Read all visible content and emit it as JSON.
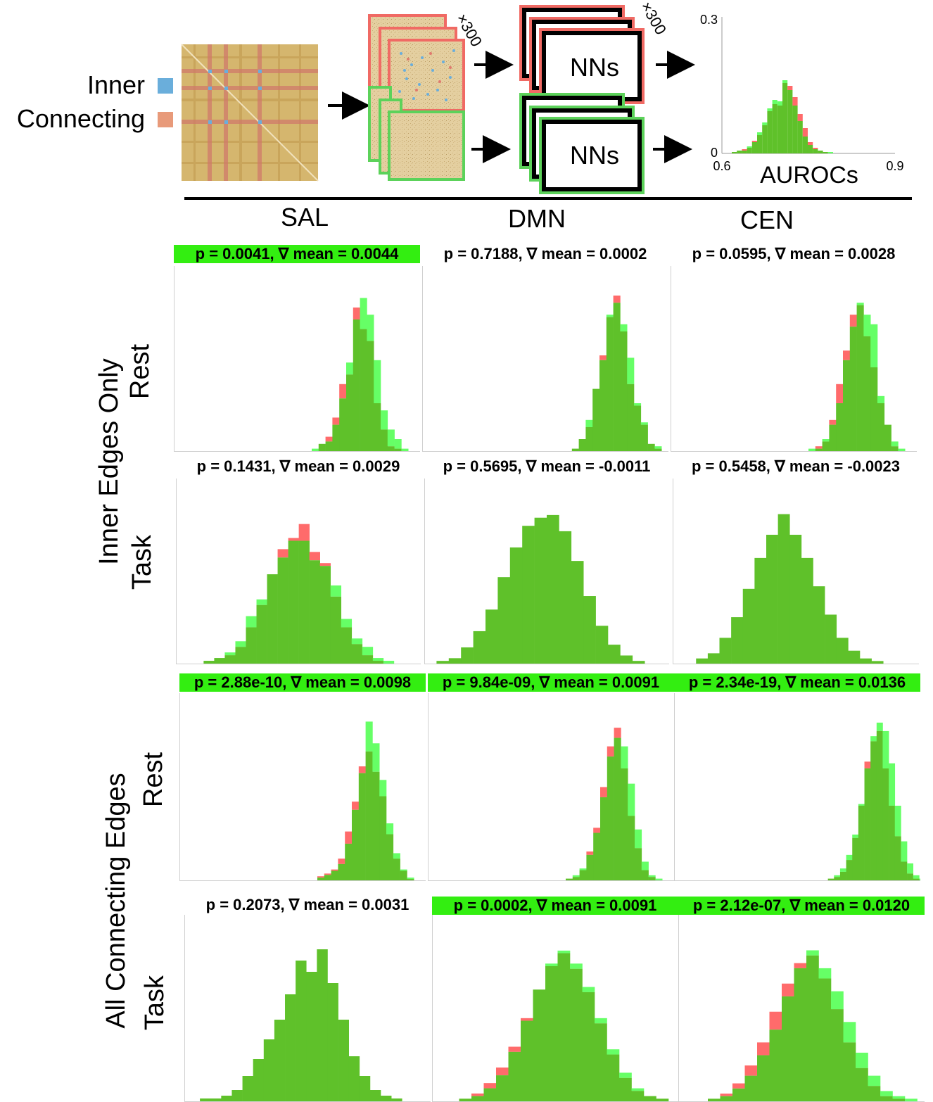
{
  "legend": {
    "inner_label": "Inner",
    "connecting_label": "Connecting",
    "inner_color": "#6aaedb",
    "connecting_color": "#e89a7a"
  },
  "diagram": {
    "repeat_label_1": "×300",
    "repeat_label_2": "×300",
    "nn_label_top": "NNs",
    "nn_label_bottom": "NNs",
    "hist_ymax": "0.3",
    "hist_ymin": "0",
    "hist_xmin": "0.6",
    "hist_xmax": "0.9",
    "hist_xlabel": "AUROCs"
  },
  "networks": [
    "SAL",
    "DMN",
    "CEN"
  ],
  "row_groups": [
    {
      "label": "Inner Edges Only"
    },
    {
      "label": "All Connecting Edges"
    }
  ],
  "row_labels": [
    "Rest",
    "Task",
    "Rest",
    "Task"
  ],
  "colors": {
    "red": "#ff6b6b",
    "green": "#66ff66",
    "overlap": "#5fc12a",
    "highlight": "#33ee11"
  },
  "chart_data": [
    {
      "type": "bar",
      "title": "p = 0.0041, ∇ mean = 0.0044",
      "significant": true,
      "series": [
        {
          "values": [
            1,
            3,
            4,
            11,
            22,
            37,
            55,
            64,
            57,
            38,
            17,
            9,
            5,
            1,
            0
          ]
        },
        {
          "values": [
            0,
            3,
            6,
            14,
            28,
            32,
            60,
            51,
            46,
            20,
            9,
            2,
            1,
            0,
            0
          ]
        }
      ]
    },
    {
      "type": "bar",
      "title": "p = 0.7188, ∇ mean = 0.0002",
      "significant": false,
      "series": [
        {
          "values": [
            0,
            1,
            5,
            13,
            26,
            38,
            57,
            62,
            53,
            39,
            20,
            12,
            3,
            2,
            0
          ]
        },
        {
          "values": [
            0,
            1,
            5,
            10,
            26,
            40,
            56,
            65,
            50,
            28,
            19,
            11,
            3,
            1,
            0
          ]
        }
      ]
    },
    {
      "type": "bar",
      "title": "p = 0.0595, ∇ mean = 0.0028",
      "significant": false,
      "series": [
        {
          "values": [
            1,
            1,
            5,
            11,
            20,
            38,
            52,
            62,
            57,
            53,
            23,
            11,
            4,
            1,
            0
          ]
        },
        {
          "values": [
            0,
            2,
            4,
            13,
            28,
            42,
            57,
            61,
            48,
            35,
            20,
            11,
            2,
            0,
            0
          ]
        }
      ]
    },
    {
      "type": "bar",
      "title": "p = 0.1431, ∇ mean = 0.0029",
      "significant": false,
      "series": [
        {
          "values": [
            0,
            1,
            2,
            4,
            8,
            17,
            23,
            32,
            38,
            44,
            44,
            37,
            35,
            28,
            16,
            9,
            6,
            2,
            1,
            0,
            0,
            0
          ]
        },
        {
          "values": [
            0,
            1,
            2,
            3,
            6,
            13,
            21,
            32,
            41,
            45,
            50,
            40,
            36,
            24,
            13,
            7,
            3,
            1,
            0,
            0,
            0,
            0
          ]
        }
      ]
    },
    {
      "type": "bar",
      "title": "p = 0.5695, ∇ mean = -0.0011",
      "significant": false,
      "series": [
        {
          "values": [
            0,
            1,
            2,
            6,
            12,
            20,
            32,
            43,
            51,
            54,
            55,
            49,
            38,
            25,
            14,
            7,
            3,
            1,
            0
          ]
        },
        {
          "values": [
            0,
            1,
            2,
            6,
            12,
            20,
            32,
            43,
            51,
            54,
            55,
            49,
            38,
            25,
            14,
            7,
            3,
            1,
            0
          ]
        }
      ]
    },
    {
      "type": "bar",
      "title": "p = 0.5458, ∇ mean = -0.0023",
      "significant": false,
      "series": [
        {
          "values": [
            0,
            0,
            2,
            4,
            10,
            18,
            29,
            41,
            50,
            58,
            50,
            41,
            30,
            19,
            10,
            5,
            2,
            1,
            0,
            0
          ]
        },
        {
          "values": [
            0,
            0,
            2,
            4,
            10,
            18,
            29,
            41,
            50,
            58,
            50,
            41,
            30,
            19,
            10,
            5,
            2,
            1,
            0,
            0
          ]
        }
      ]
    },
    {
      "type": "bar",
      "title": "p = 2.88e-10, ∇ mean = 0.0098",
      "significant": true,
      "series": [
        {
          "values": [
            2,
            4,
            7,
            12,
            27,
            52,
            79,
            117,
            101,
            74,
            42,
            20,
            8,
            2,
            0
          ]
        },
        {
          "values": [
            3,
            5,
            8,
            16,
            36,
            58,
            84,
            95,
            80,
            62,
            34,
            16,
            7,
            1,
            0
          ]
        }
      ]
    },
    {
      "type": "bar",
      "title": "p = 9.84e-09, ∇ mean = 0.0091",
      "significant": true,
      "series": [
        {
          "values": [
            1,
            3,
            7,
            15,
            28,
            49,
            73,
            84,
            79,
            57,
            30,
            11,
            3,
            1,
            0
          ]
        },
        {
          "values": [
            1,
            2,
            6,
            17,
            31,
            55,
            79,
            90,
            66,
            38,
            19,
            6,
            2,
            0,
            0
          ]
        }
      ]
    },
    {
      "type": "bar",
      "title": "p = 2.34e-19, ∇ mean = 0.0136",
      "significant": true,
      "series": [
        {
          "values": [
            0,
            1,
            3,
            7,
            15,
            27,
            45,
            66,
            85,
            93,
            88,
            69,
            44,
            23,
            10,
            3,
            1
          ]
        },
        {
          "values": [
            0,
            1,
            2,
            5,
            12,
            25,
            44,
            70,
            82,
            88,
            66,
            44,
            26,
            11,
            4,
            1,
            0
          ]
        }
      ]
    },
    {
      "type": "bar",
      "title": "p = 0.2073, ∇ mean = 0.0031",
      "significant": false,
      "series": [
        {
          "values": [
            0,
            1,
            1,
            2,
            4,
            9,
            15,
            22,
            29,
            38,
            50,
            46,
            54,
            42,
            29,
            16,
            9,
            4,
            2,
            1,
            0,
            0
          ]
        },
        {
          "values": [
            0,
            1,
            1,
            2,
            4,
            9,
            15,
            22,
            29,
            38,
            50,
            46,
            54,
            42,
            29,
            16,
            9,
            4,
            2,
            1,
            0,
            0
          ]
        }
      ]
    },
    {
      "type": "bar",
      "title": "p = 0.0002, ∇ mean = 0.0091",
      "significant": true,
      "series": [
        {
          "values": [
            0,
            1,
            2,
            5,
            10,
            19,
            31,
            43,
            53,
            58,
            53,
            44,
            32,
            20,
            11,
            5,
            2,
            1,
            0
          ]
        },
        {
          "values": [
            0,
            1,
            3,
            7,
            13,
            21,
            32,
            43,
            52,
            57,
            51,
            42,
            30,
            18,
            9,
            4,
            2,
            1,
            0
          ]
        }
      ]
    },
    {
      "type": "bar",
      "title": "p = 2.12e-07, ∇ mean = 0.0120",
      "significant": true,
      "series": [
        {
          "values": [
            0,
            1,
            2,
            5,
            10,
            18,
            28,
            41,
            52,
            59,
            52,
            43,
            31,
            19,
            10,
            4,
            2,
            1,
            0
          ]
        },
        {
          "values": [
            0,
            1,
            3,
            7,
            14,
            23,
            35,
            46,
            54,
            57,
            48,
            36,
            23,
            13,
            6,
            2,
            1,
            0,
            0
          ]
        }
      ]
    },
    {
      "type": "bar",
      "title": "",
      "significant": false,
      "series": [
        {
          "values": [
            0,
            1,
            2,
            4,
            7,
            12,
            18,
            28,
            35,
            43,
            38,
            33,
            26,
            18,
            12,
            7,
            4,
            2,
            1,
            0
          ]
        },
        {
          "values": [
            0,
            1,
            2,
            5,
            9,
            14,
            21,
            30,
            38,
            44,
            36,
            30,
            22,
            15,
            9,
            5,
            3,
            1,
            0,
            0
          ]
        }
      ]
    }
  ]
}
